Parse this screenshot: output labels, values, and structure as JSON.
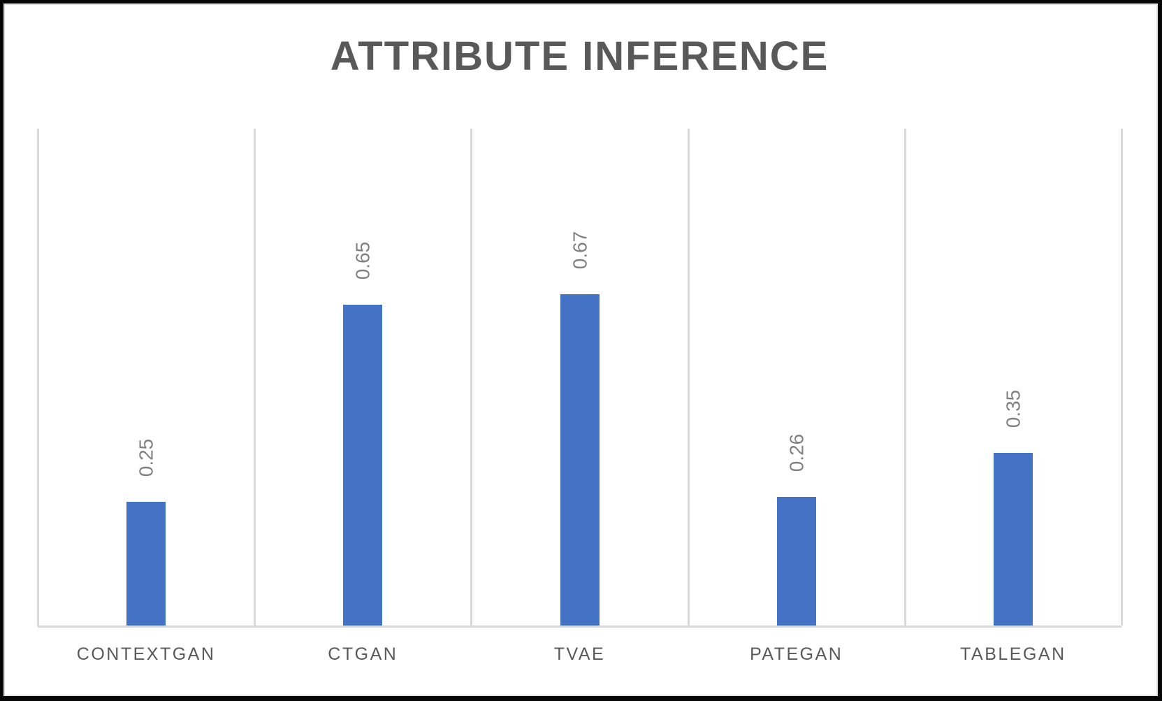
{
  "chart_data": {
    "type": "bar",
    "title": "ATTRIBUTE INFERENCE",
    "categories": [
      "CONTEXTGAN",
      "CTGAN",
      "TVAE",
      "PATEGAN",
      "TABLEGAN"
    ],
    "values": [
      0.25,
      0.65,
      0.67,
      0.26,
      0.35
    ],
    "data_labels": [
      "0.25",
      "0.65",
      "0.67",
      "0.26",
      "0.35"
    ],
    "data_label_rotation_deg": -90,
    "xlabel": "",
    "ylabel": "",
    "ylim": [
      0,
      1.0
    ],
    "y_axis_ticks_visible": false,
    "grid": "vertical category separators only",
    "legend_position": "none",
    "colors": {
      "bar": "#4472C4",
      "gridline": "#d9d9d9",
      "axis_line": "#d9d9d9",
      "title_text": "#595959",
      "category_text": "#595959",
      "value_label_text": "#808080",
      "background": "#ffffff",
      "outer_border": "#060606"
    }
  }
}
